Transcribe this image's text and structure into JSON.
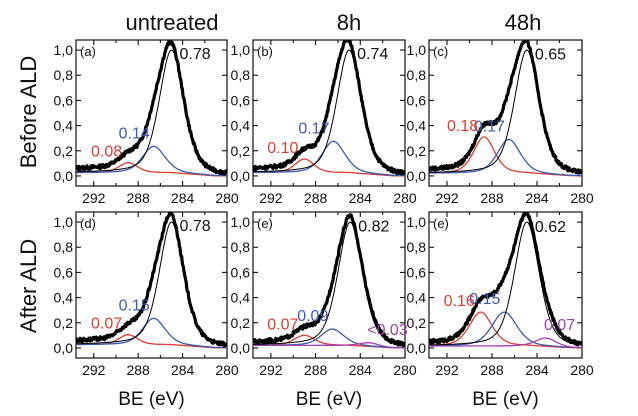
{
  "figure": {
    "column_titles": [
      "untreated",
      "8h",
      "48h"
    ],
    "row_labels": [
      "Before ALD",
      "After ALD"
    ]
  },
  "colors": {
    "data": "#000000",
    "fit": "#000000",
    "red_component": "#e03c31",
    "blue_component": "#3a5bb5",
    "purple_component": "#a040b0"
  },
  "chart_data": [
    {
      "type": "line",
      "panel": "(a)",
      "column": "untreated",
      "row": "Before ALD",
      "xlabel": "",
      "ylabel": "",
      "xlim": [
        293.6,
        280
      ],
      "ylim": [
        -0.08,
        1.08
      ],
      "xticks": [
        292,
        288,
        284,
        280
      ],
      "yticks": [
        "0,0",
        "0,2",
        "0,4",
        "0,6",
        "0,8",
        "1,0"
      ],
      "peaks": {
        "main": {
          "label": "0.78",
          "center": 285.0,
          "height": 1.0,
          "width": 1.3
        },
        "blue": {
          "label": "0.14",
          "center": 286.6,
          "height": 0.21,
          "width": 1.2
        },
        "red": {
          "label": "0.08",
          "center": 288.9,
          "height": 0.08,
          "width": 1.0
        }
      },
      "baseline": 0.05
    },
    {
      "type": "line",
      "panel": "(b)",
      "column": "8h",
      "row": "Before ALD",
      "xlabel": "",
      "ylabel": "",
      "xlim": [
        293.6,
        280
      ],
      "ylim": [
        -0.08,
        1.08
      ],
      "xticks": [
        292,
        288,
        284,
        280
      ],
      "yticks": [
        "0,0",
        "0,2",
        "0,4",
        "0,6",
        "0,8",
        "1,0"
      ],
      "peaks": {
        "main": {
          "label": "0.74",
          "center": 285.0,
          "height": 1.0,
          "width": 1.3
        },
        "blue": {
          "label": "0.17",
          "center": 286.4,
          "height": 0.25,
          "width": 1.2
        },
        "red": {
          "label": "0.10",
          "center": 289.0,
          "height": 0.11,
          "width": 1.0
        }
      },
      "baseline": 0.05
    },
    {
      "type": "line",
      "panel": "(c)",
      "column": "48h",
      "row": "Before ALD",
      "xlabel": "",
      "ylabel": "",
      "xlim": [
        293.6,
        280
      ],
      "ylim": [
        -0.08,
        1.08
      ],
      "xticks": [
        292,
        288,
        284,
        280
      ],
      "yticks": [
        "0,0",
        "0,2",
        "0,4",
        "0,6",
        "0,8",
        "1,0"
      ],
      "peaks": {
        "main": {
          "label": "0.65",
          "center": 284.9,
          "height": 1.0,
          "width": 1.3
        },
        "blue": {
          "label": "0.17",
          "center": 286.5,
          "height": 0.27,
          "width": 1.2
        },
        "red": {
          "label": "0.18",
          "center": 288.7,
          "height": 0.29,
          "width": 1.1
        }
      },
      "baseline": 0.04
    },
    {
      "type": "line",
      "panel": "(d)",
      "column": "untreated",
      "row": "After ALD",
      "xlabel": "BE (eV)",
      "ylabel": "",
      "xlim": [
        293.6,
        280
      ],
      "ylim": [
        -0.08,
        1.08
      ],
      "xticks": [
        292,
        288,
        284,
        280
      ],
      "yticks": [
        "0,0",
        "0,2",
        "0,4",
        "0,6",
        "0,8",
        "1,0"
      ],
      "peaks": {
        "main": {
          "label": "0.78",
          "center": 285.0,
          "height": 1.0,
          "width": 1.3
        },
        "blue": {
          "label": "0.15",
          "center": 286.6,
          "height": 0.21,
          "width": 1.2
        },
        "red": {
          "label": "0.07",
          "center": 288.9,
          "height": 0.08,
          "width": 1.0
        }
      },
      "baseline": 0.05
    },
    {
      "type": "line",
      "panel": "(e)",
      "column": "8h",
      "row": "After ALD",
      "xlabel": "BE (eV)",
      "ylabel": "",
      "xlim": [
        293.6,
        280
      ],
      "ylim": [
        -0.08,
        1.08
      ],
      "xticks": [
        292,
        288,
        284,
        280
      ],
      "yticks": [
        "0,0",
        "0,2",
        "0,4",
        "0,6",
        "0,8",
        "1,0"
      ],
      "peaks": {
        "main": {
          "label": "0.82",
          "center": 284.9,
          "height": 1.0,
          "width": 1.3
        },
        "blue": {
          "label": "0.09",
          "center": 286.5,
          "height": 0.13,
          "width": 1.2
        },
        "red": {
          "label": "0.07",
          "center": 289.0,
          "height": 0.08,
          "width": 1.1
        },
        "purple": {
          "label": "<0.03",
          "center": 283.2,
          "height": 0.03,
          "width": 1.0
        }
      },
      "baseline": 0.04
    },
    {
      "type": "line",
      "panel": "(e)",
      "column": "48h",
      "row": "After ALD",
      "xlabel": "BE (eV)",
      "ylabel": "",
      "xlim": [
        293.6,
        280
      ],
      "ylim": [
        -0.08,
        1.08
      ],
      "xticks": [
        292,
        288,
        284,
        280
      ],
      "yticks": [
        "0,0",
        "0,2",
        "0,4",
        "0,6",
        "0,8",
        "1,0"
      ],
      "peaks": {
        "main": {
          "label": "0.62",
          "center": 284.9,
          "height": 1.0,
          "width": 1.3
        },
        "blue": {
          "label": "0.15",
          "center": 286.9,
          "height": 0.27,
          "width": 1.3
        },
        "red": {
          "label": "0.16",
          "center": 289.0,
          "height": 0.27,
          "width": 1.2
        },
        "purple": {
          "label": "0.07",
          "center": 283.2,
          "height": 0.07,
          "width": 1.1
        }
      },
      "baseline": 0.03
    }
  ]
}
